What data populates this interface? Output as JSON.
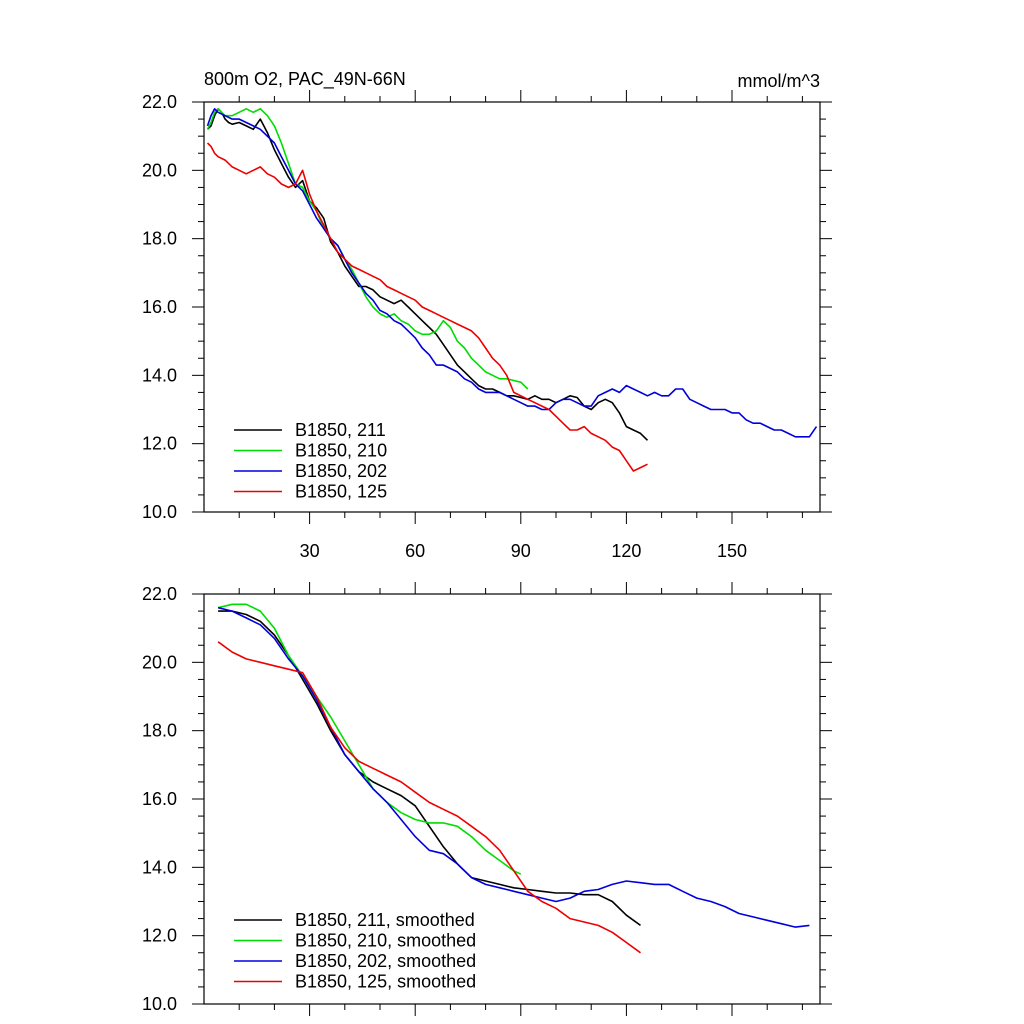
{
  "chart_data": [
    {
      "type": "line",
      "title": "800m O2, PAC_49N-66N",
      "units": "mmol/m^3",
      "xlim": [
        0,
        175
      ],
      "ylim": [
        10,
        22
      ],
      "yticks": [
        "10.0",
        "12.0",
        "14.0",
        "16.0",
        "18.0",
        "20.0",
        "22.0"
      ],
      "xticks": [
        "30",
        "60",
        "90",
        "120",
        "150"
      ],
      "legend_position": "bottom-left",
      "series": [
        {
          "name": "B1850, 211",
          "color": "#000000",
          "x": [
            1,
            2,
            3,
            4,
            5,
            6,
            7,
            8,
            10,
            12,
            14,
            16,
            18,
            20,
            22,
            24,
            26,
            28,
            30,
            32,
            34,
            36,
            38,
            40,
            42,
            44,
            46,
            48,
            50,
            52,
            54,
            56,
            58,
            60,
            62,
            64,
            66,
            68,
            70,
            72,
            74,
            76,
            78,
            80,
            82,
            84,
            86,
            88,
            90,
            92,
            94,
            96,
            98,
            100,
            102,
            104,
            106,
            108,
            110,
            112,
            114,
            116,
            118,
            120,
            122,
            124,
            126
          ],
          "y": [
            21.2,
            21.3,
            21.6,
            21.8,
            21.7,
            21.5,
            21.4,
            21.35,
            21.4,
            21.3,
            21.2,
            21.5,
            21.1,
            20.6,
            20.2,
            19.8,
            19.5,
            19.7,
            19.1,
            18.9,
            18.6,
            17.9,
            17.6,
            17.2,
            16.9,
            16.6,
            16.6,
            16.5,
            16.3,
            16.2,
            16.1,
            16.2,
            16.0,
            15.8,
            15.6,
            15.4,
            15.2,
            14.9,
            14.6,
            14.3,
            14.1,
            13.9,
            13.7,
            13.6,
            13.6,
            13.5,
            13.4,
            13.4,
            13.35,
            13.3,
            13.4,
            13.3,
            13.3,
            13.2,
            13.3,
            13.4,
            13.35,
            13.1,
            13.0,
            13.2,
            13.3,
            13.2,
            12.9,
            12.5,
            12.4,
            12.3,
            12.1
          ]
        },
        {
          "name": "B1850, 210",
          "color": "#00dd00",
          "x": [
            1,
            2,
            3,
            4,
            5,
            6,
            8,
            10,
            12,
            14,
            16,
            18,
            20,
            22,
            24,
            26,
            28,
            30,
            32,
            34,
            36,
            38,
            40,
            42,
            44,
            46,
            48,
            50,
            52,
            54,
            56,
            58,
            60,
            62,
            64,
            66,
            68,
            70,
            72,
            74,
            76,
            78,
            80,
            82,
            84,
            86,
            88,
            90,
            92
          ],
          "y": [
            21.2,
            21.4,
            21.7,
            21.8,
            21.7,
            21.6,
            21.6,
            21.7,
            21.8,
            21.7,
            21.8,
            21.6,
            21.3,
            20.8,
            20.2,
            19.6,
            19.5,
            19.1,
            18.8,
            18.3,
            18.0,
            17.8,
            17.4,
            17.1,
            16.7,
            16.3,
            16.0,
            15.8,
            15.7,
            15.8,
            15.6,
            15.5,
            15.3,
            15.2,
            15.2,
            15.3,
            15.6,
            15.4,
            15.0,
            14.8,
            14.5,
            14.3,
            14.1,
            14.0,
            13.9,
            13.9,
            13.85,
            13.8,
            13.6
          ]
        },
        {
          "name": "B1850, 202",
          "color": "#0000dd",
          "x": [
            1,
            2,
            3,
            4,
            6,
            8,
            10,
            12,
            14,
            16,
            18,
            20,
            22,
            24,
            26,
            28,
            30,
            32,
            34,
            36,
            38,
            40,
            42,
            44,
            46,
            48,
            50,
            52,
            54,
            56,
            58,
            60,
            62,
            64,
            66,
            68,
            70,
            72,
            74,
            76,
            78,
            80,
            82,
            84,
            86,
            88,
            90,
            92,
            94,
            96,
            98,
            100,
            102,
            104,
            106,
            108,
            110,
            112,
            114,
            116,
            118,
            120,
            122,
            124,
            126,
            128,
            130,
            132,
            134,
            136,
            138,
            140,
            142,
            144,
            146,
            148,
            150,
            152,
            154,
            156,
            158,
            160,
            162,
            164,
            166,
            168,
            170,
            172,
            174
          ],
          "y": [
            21.3,
            21.6,
            21.8,
            21.7,
            21.6,
            21.5,
            21.5,
            21.4,
            21.3,
            21.2,
            21.0,
            20.8,
            20.4,
            20.0,
            19.6,
            19.4,
            19.0,
            18.6,
            18.3,
            18.0,
            17.8,
            17.4,
            17.0,
            16.7,
            16.4,
            16.2,
            15.9,
            15.8,
            15.6,
            15.5,
            15.3,
            15.1,
            14.8,
            14.6,
            14.3,
            14.3,
            14.2,
            14.1,
            13.9,
            13.8,
            13.6,
            13.5,
            13.5,
            13.5,
            13.4,
            13.3,
            13.2,
            13.1,
            13.1,
            13.0,
            13.0,
            13.2,
            13.3,
            13.3,
            13.2,
            13.1,
            13.1,
            13.4,
            13.5,
            13.6,
            13.5,
            13.7,
            13.6,
            13.5,
            13.4,
            13.5,
            13.4,
            13.4,
            13.6,
            13.6,
            13.3,
            13.2,
            13.1,
            13.0,
            13.0,
            13.0,
            12.9,
            12.9,
            12.7,
            12.6,
            12.6,
            12.5,
            12.4,
            12.4,
            12.3,
            12.2,
            12.2,
            12.2,
            12.5
          ]
        },
        {
          "name": "B1850, 125",
          "color": "#ee0000",
          "x": [
            1,
            2,
            3,
            4,
            6,
            8,
            10,
            12,
            14,
            16,
            18,
            20,
            22,
            24,
            26,
            28,
            30,
            32,
            34,
            36,
            38,
            40,
            42,
            44,
            46,
            48,
            50,
            52,
            54,
            56,
            58,
            60,
            62,
            64,
            66,
            68,
            70,
            72,
            74,
            76,
            78,
            80,
            82,
            84,
            86,
            88,
            90,
            92,
            94,
            96,
            98,
            100,
            102,
            104,
            106,
            108,
            110,
            112,
            114,
            116,
            118,
            120,
            122,
            124,
            126
          ],
          "y": [
            20.8,
            20.7,
            20.5,
            20.4,
            20.3,
            20.1,
            20.0,
            19.9,
            20.0,
            20.1,
            19.9,
            19.8,
            19.6,
            19.5,
            19.6,
            20.0,
            19.3,
            18.8,
            18.4,
            18.0,
            17.6,
            17.4,
            17.2,
            17.1,
            17.0,
            16.9,
            16.8,
            16.6,
            16.5,
            16.4,
            16.3,
            16.2,
            16.0,
            15.9,
            15.8,
            15.7,
            15.6,
            15.5,
            15.4,
            15.3,
            15.1,
            14.8,
            14.5,
            14.3,
            14.0,
            13.5,
            13.4,
            13.3,
            13.2,
            13.1,
            13.0,
            12.8,
            12.6,
            12.4,
            12.4,
            12.5,
            12.3,
            12.2,
            12.1,
            11.9,
            11.8,
            11.5,
            11.2,
            11.3,
            11.4
          ]
        }
      ]
    },
    {
      "type": "line",
      "xlim": [
        0,
        175
      ],
      "ylim": [
        10,
        22
      ],
      "yticks": [
        "10.0",
        "12.0",
        "14.0",
        "16.0",
        "18.0",
        "20.0",
        "22.0"
      ],
      "legend_position": "bottom-left",
      "series": [
        {
          "name": "B1850, 211, smoothed",
          "color": "#000000",
          "x": [
            4,
            8,
            12,
            16,
            20,
            24,
            28,
            32,
            36,
            40,
            44,
            48,
            52,
            56,
            60,
            64,
            68,
            72,
            76,
            80,
            84,
            88,
            92,
            96,
            100,
            104,
            108,
            112,
            116,
            120,
            124
          ],
          "y": [
            21.5,
            21.5,
            21.4,
            21.2,
            20.8,
            20.2,
            19.5,
            18.8,
            18.0,
            17.3,
            16.8,
            16.5,
            16.3,
            16.1,
            15.8,
            15.2,
            14.6,
            14.1,
            13.7,
            13.6,
            13.5,
            13.4,
            13.35,
            13.3,
            13.25,
            13.25,
            13.2,
            13.2,
            13.0,
            12.6,
            12.3
          ]
        },
        {
          "name": "B1850, 210, smoothed",
          "color": "#00dd00",
          "x": [
            4,
            8,
            12,
            16,
            20,
            24,
            28,
            32,
            36,
            40,
            44,
            48,
            52,
            56,
            60,
            64,
            68,
            72,
            76,
            80,
            84,
            88,
            90
          ],
          "y": [
            21.6,
            21.7,
            21.7,
            21.5,
            21.0,
            20.2,
            19.6,
            19.0,
            18.4,
            17.7,
            17.0,
            16.3,
            15.9,
            15.6,
            15.4,
            15.3,
            15.3,
            15.2,
            14.9,
            14.5,
            14.2,
            13.9,
            13.8
          ]
        },
        {
          "name": "B1850, 202, smoothed",
          "color": "#0000dd",
          "x": [
            4,
            8,
            12,
            16,
            20,
            24,
            28,
            32,
            36,
            40,
            44,
            48,
            52,
            56,
            60,
            64,
            68,
            72,
            76,
            80,
            84,
            88,
            92,
            96,
            100,
            104,
            108,
            112,
            116,
            120,
            124,
            128,
            132,
            136,
            140,
            144,
            148,
            152,
            156,
            160,
            164,
            168,
            172
          ],
          "y": [
            21.6,
            21.5,
            21.3,
            21.1,
            20.7,
            20.1,
            19.6,
            18.9,
            18.1,
            17.3,
            16.8,
            16.3,
            15.9,
            15.4,
            14.9,
            14.5,
            14.4,
            14.1,
            13.7,
            13.5,
            13.4,
            13.3,
            13.2,
            13.1,
            13.0,
            13.1,
            13.3,
            13.35,
            13.5,
            13.6,
            13.55,
            13.5,
            13.5,
            13.3,
            13.1,
            13.0,
            12.85,
            12.65,
            12.55,
            12.45,
            12.35,
            12.25,
            12.3
          ]
        },
        {
          "name": "B1850, 125, smoothed",
          "color": "#ee0000",
          "x": [
            4,
            8,
            12,
            16,
            20,
            24,
            28,
            32,
            36,
            40,
            44,
            48,
            52,
            56,
            60,
            64,
            68,
            72,
            76,
            80,
            84,
            88,
            92,
            96,
            100,
            104,
            108,
            112,
            116,
            120,
            124
          ],
          "y": [
            20.6,
            20.3,
            20.1,
            20.0,
            19.9,
            19.8,
            19.7,
            19.0,
            18.1,
            17.5,
            17.1,
            16.9,
            16.7,
            16.5,
            16.2,
            15.9,
            15.7,
            15.5,
            15.2,
            14.9,
            14.5,
            13.9,
            13.3,
            13.0,
            12.8,
            12.5,
            12.4,
            12.3,
            12.1,
            11.8,
            11.5
          ]
        }
      ]
    }
  ]
}
